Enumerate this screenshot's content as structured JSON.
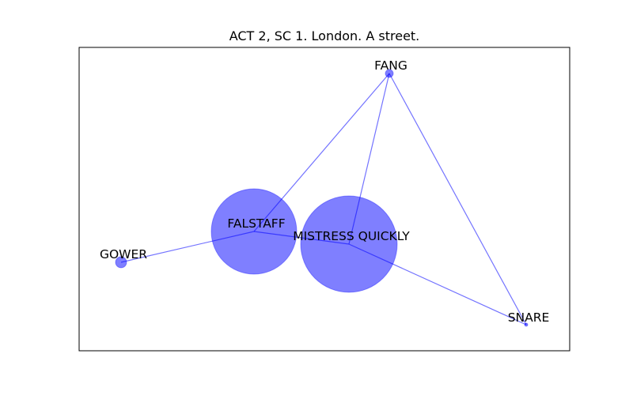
{
  "title": "ACT 2, SC 1. London. A street.",
  "colors": {
    "node_fill": "#0000ff",
    "node_opacity": 0.5,
    "edge": "#0000ff",
    "frame": "#000000",
    "background": "#ffffff"
  },
  "nodes": [
    {
      "id": "fang",
      "label": "FANG",
      "weight": 1
    },
    {
      "id": "falstaff",
      "label": "FALSTAFF",
      "weight": 12
    },
    {
      "id": "mistress_quickly",
      "label": "MISTRESS QUICKLY",
      "weight": 15
    },
    {
      "id": "gower",
      "label": "GOWER",
      "weight": 2
    },
    {
      "id": "snare",
      "label": "SNARE",
      "weight": 0.1
    }
  ],
  "edges": [
    {
      "source": "fang",
      "target": "falstaff"
    },
    {
      "source": "fang",
      "target": "mistress_quickly"
    },
    {
      "source": "fang",
      "target": "snare"
    },
    {
      "source": "falstaff",
      "target": "mistress_quickly"
    },
    {
      "source": "falstaff",
      "target": "gower"
    },
    {
      "source": "mistress_quickly",
      "target": "snare"
    }
  ]
}
